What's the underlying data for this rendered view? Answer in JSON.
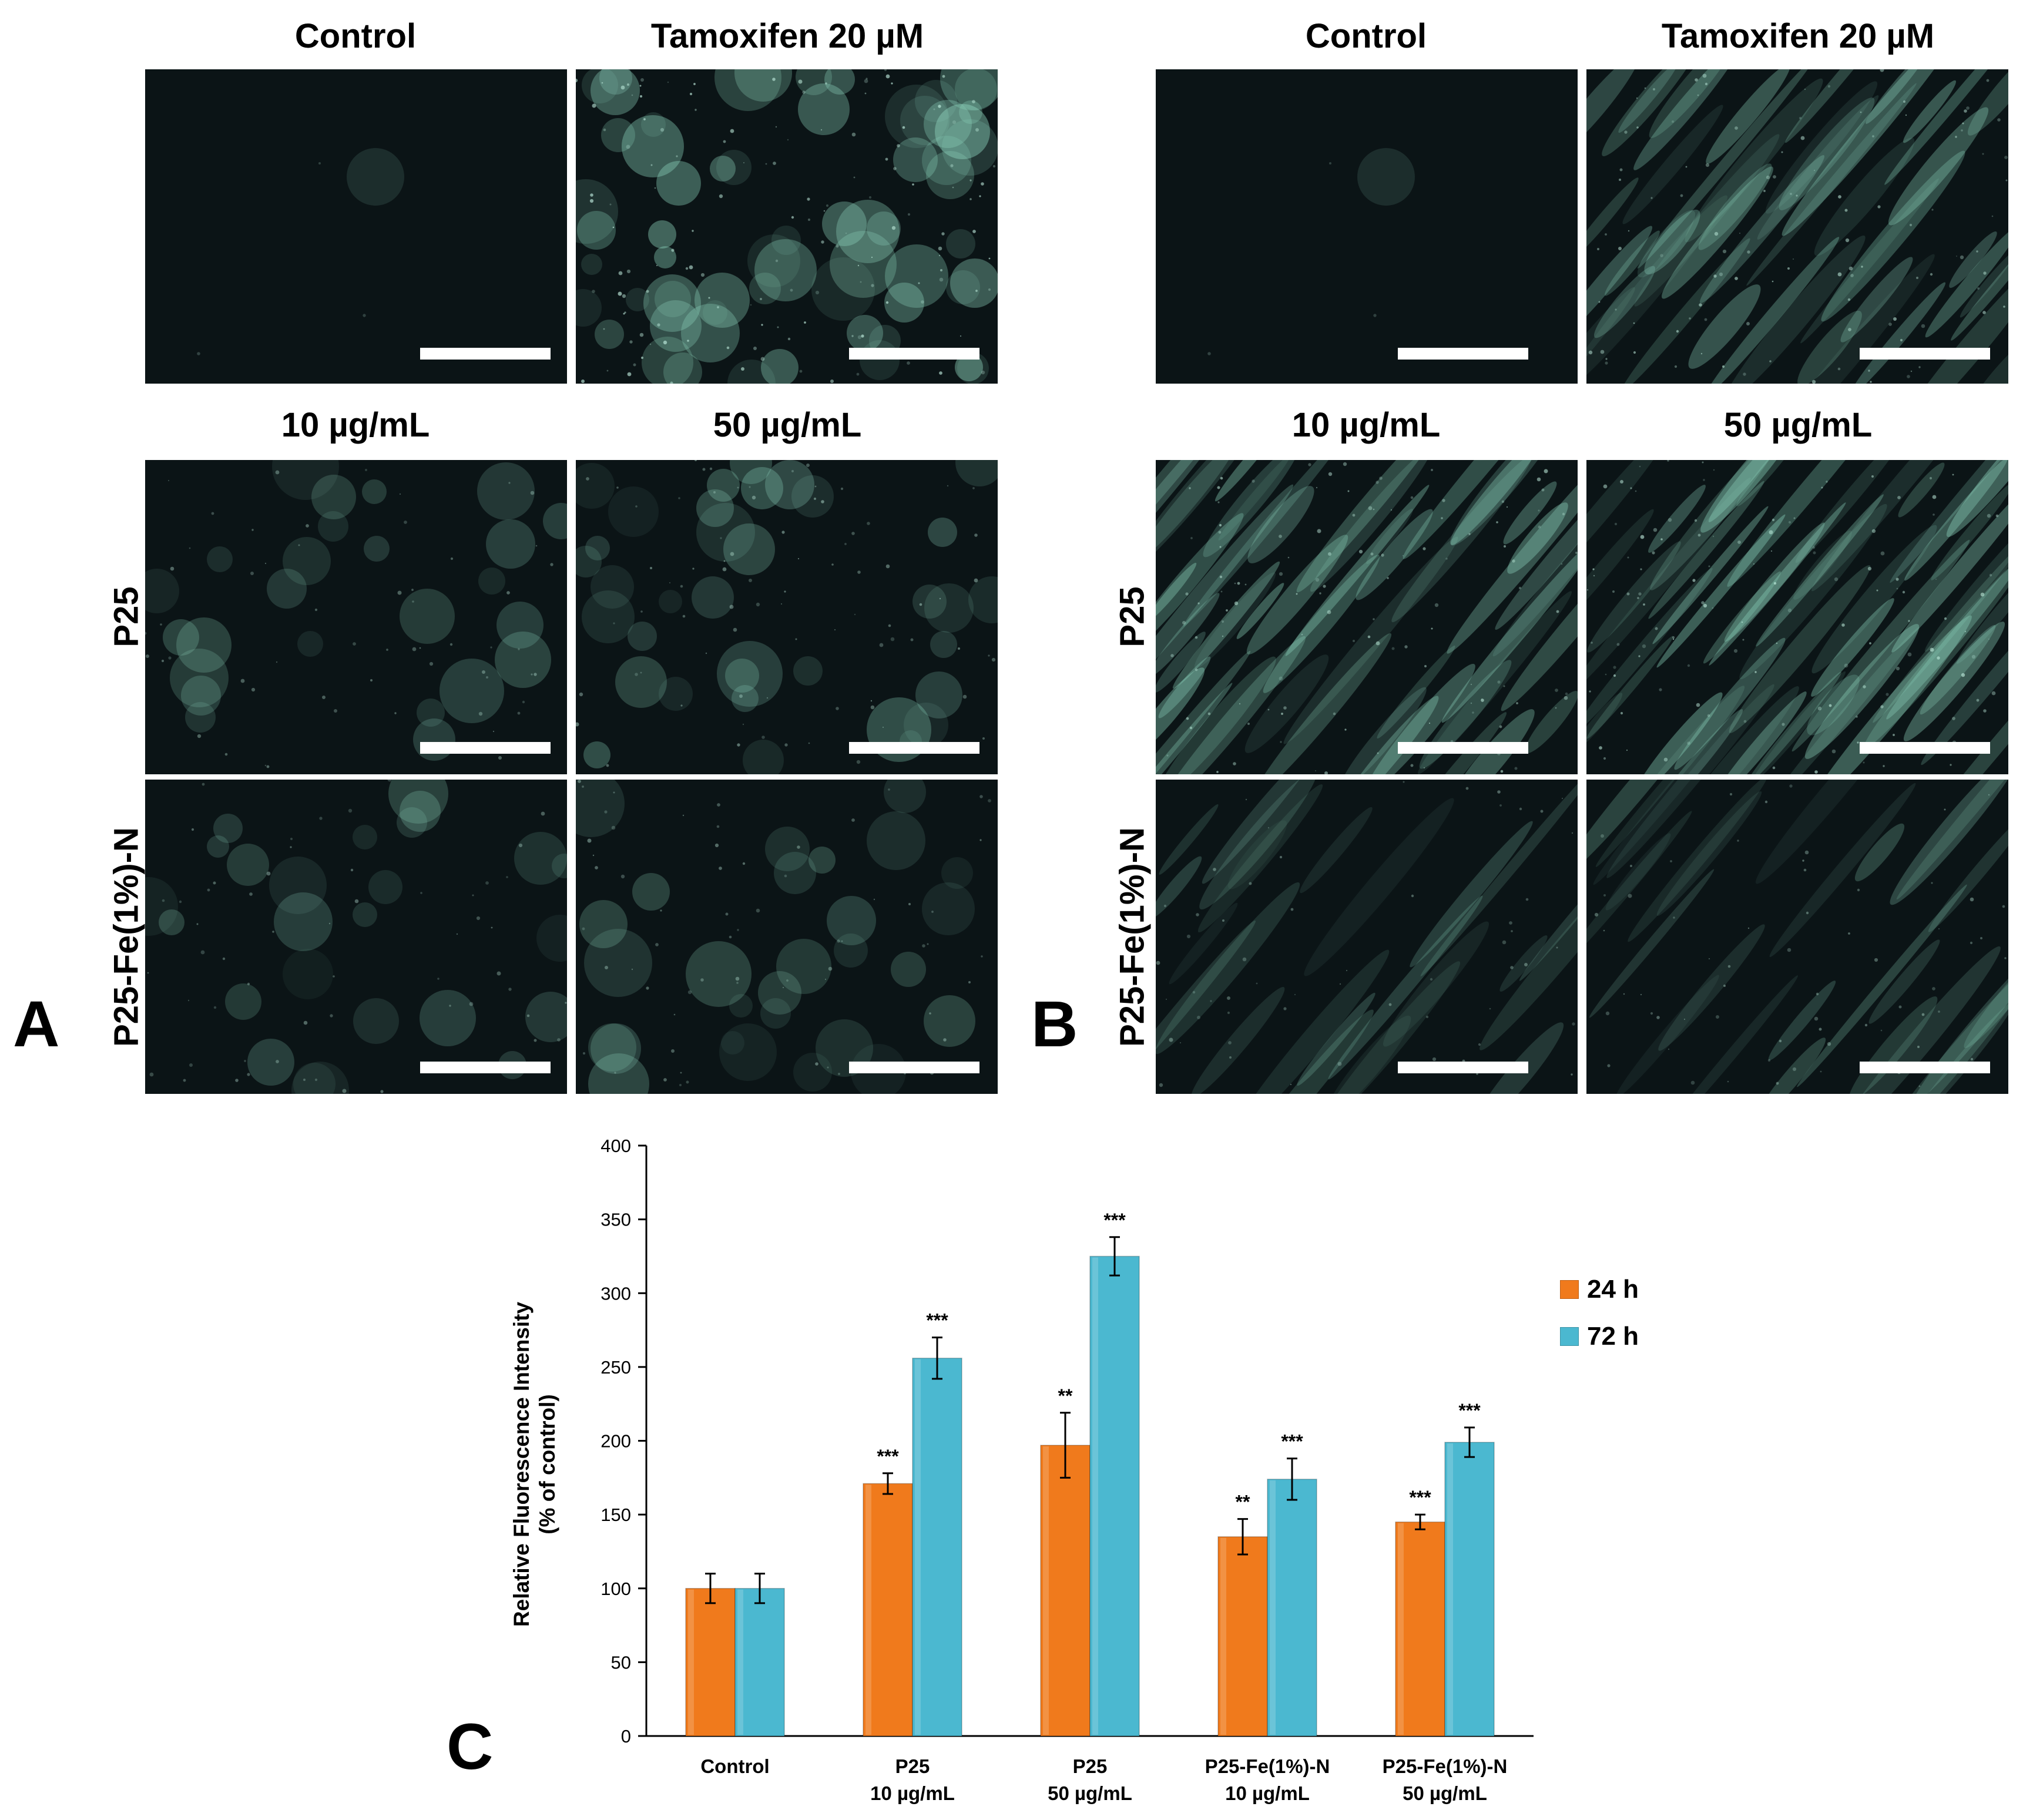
{
  "panels": {
    "A": {
      "letter": "A",
      "col_titles_top": [
        "Control",
        "Tamoxifen 20 µM"
      ],
      "col_titles_mid": [
        "10 µg/mL",
        "50 µg/mL"
      ],
      "row_labels": [
        "P25",
        "P25-Fe(1%)-N"
      ]
    },
    "B": {
      "letter": "B",
      "col_titles_top": [
        "Control",
        "Tamoxifen 20 µM"
      ],
      "col_titles_mid": [
        "10 µg/mL",
        "50 µg/mL"
      ],
      "row_labels": [
        "P25",
        "P25-Fe(1%)-N"
      ]
    },
    "C": {
      "letter": "C"
    }
  },
  "colors": {
    "bar_24h": "#f07a1c",
    "bar_72h": "#4bb8d0",
    "micro_bg": "#0b1416",
    "micro_signal": "#8fd8c0"
  },
  "chart_data": {
    "type": "bar",
    "categories": [
      [
        "Control"
      ],
      [
        "P25",
        "10 µg/mL"
      ],
      [
        "P25",
        "50 µg/mL"
      ],
      [
        "P25-Fe(1%)-N",
        "10 µg/mL"
      ],
      [
        "P25-Fe(1%)-N",
        "50 µg/mL"
      ]
    ],
    "series": [
      {
        "name": "24 h",
        "values": [
          100,
          171,
          197,
          135,
          145
        ],
        "errors": [
          10,
          7,
          22,
          12,
          5
        ],
        "significance": [
          "",
          "***",
          "**",
          "**",
          "***"
        ]
      },
      {
        "name": "72 h",
        "values": [
          100,
          256,
          325,
          174,
          199
        ],
        "errors": [
          10,
          14,
          13,
          14,
          10
        ],
        "significance": [
          "",
          "***",
          "***",
          "***",
          "***"
        ]
      }
    ],
    "ylabel": [
      "Relative Fluorescence Intensity",
      "(% of control)"
    ],
    "xlabel": "",
    "ylim": [
      0,
      400
    ],
    "yticks": [
      0,
      50,
      100,
      150,
      200,
      250,
      300,
      350,
      400
    ],
    "grid": false,
    "legend_position": "right"
  }
}
